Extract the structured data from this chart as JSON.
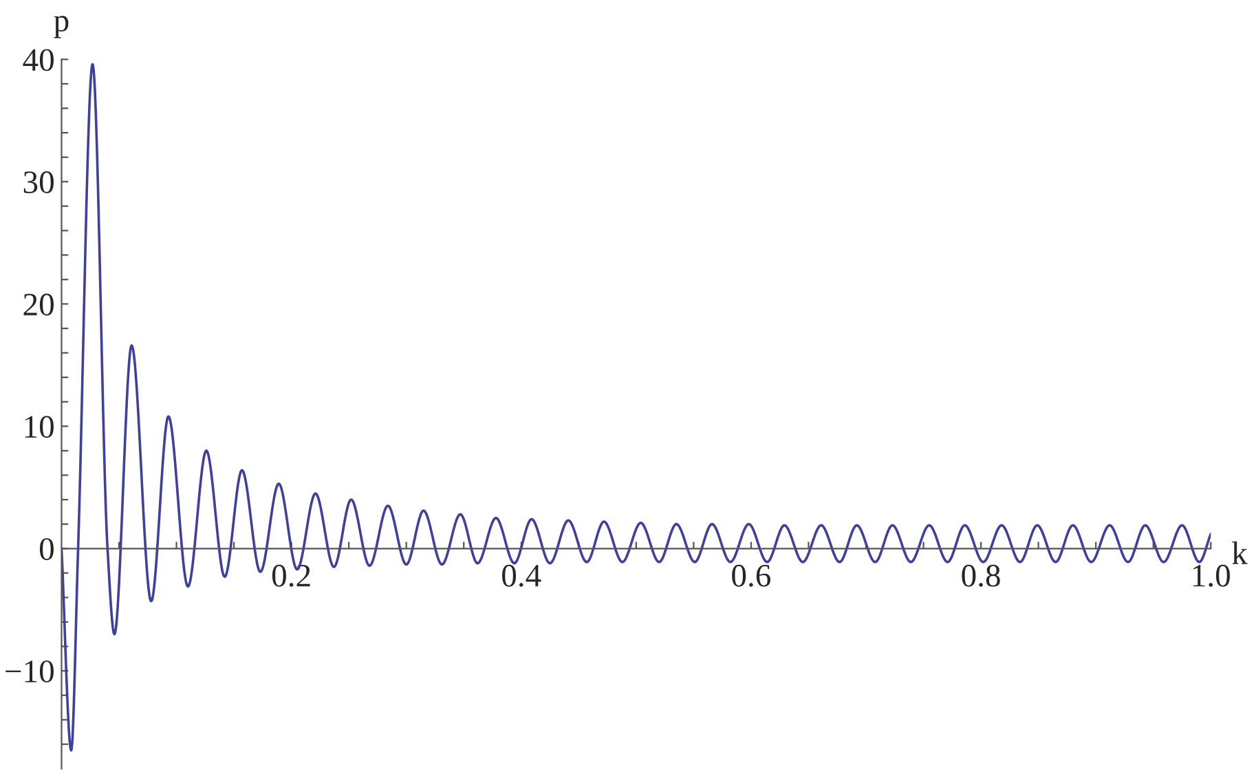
{
  "chart_data": {
    "type": "line",
    "xlabel": "k",
    "ylabel": "p",
    "xlim": [
      0,
      1.0
    ],
    "ylim": [
      -18,
      40
    ],
    "xticks": [
      {
        "value": 0.05,
        "label": null
      },
      {
        "value": 0.1,
        "label": null
      },
      {
        "value": 0.15,
        "label": null
      },
      0.2,
      {
        "value": 0.25,
        "label": null
      },
      {
        "value": 0.3,
        "label": null
      },
      {
        "value": 0.35,
        "label": null
      },
      0.4,
      {
        "value": 0.45,
        "label": null
      },
      {
        "value": 0.5,
        "label": null
      },
      {
        "value": 0.55,
        "label": null
      },
      0.6,
      {
        "value": 0.65,
        "label": null
      },
      {
        "value": 0.7,
        "label": null
      },
      {
        "value": 0.75,
        "label": null
      },
      0.8,
      {
        "value": 0.85,
        "label": null
      },
      {
        "value": 0.9,
        "label": null
      },
      {
        "value": 0.95,
        "label": null
      },
      {
        "value": 1.0,
        "label": "1.0"
      }
    ],
    "yticks": [
      {
        "value": -16,
        "label": null
      },
      {
        "value": -14,
        "label": null
      },
      {
        "value": -12,
        "label": null
      },
      {
        "value": -10,
        "label": "−10"
      },
      {
        "value": -8,
        "label": null
      },
      {
        "value": -6,
        "label": null
      },
      {
        "value": -4,
        "label": null
      },
      {
        "value": -2,
        "label": null
      },
      0,
      {
        "value": 2,
        "label": null
      },
      {
        "value": 4,
        "label": null
      },
      {
        "value": 6,
        "label": null
      },
      {
        "value": 8,
        "label": null
      },
      10,
      {
        "value": 12,
        "label": null
      },
      {
        "value": 14,
        "label": null
      },
      {
        "value": 16,
        "label": null
      },
      {
        "value": 18,
        "label": null
      },
      20,
      {
        "value": 22,
        "label": null
      },
      {
        "value": 24,
        "label": null
      },
      {
        "value": 26,
        "label": null
      },
      {
        "value": 28,
        "label": null
      },
      30,
      {
        "value": 32,
        "label": null
      },
      {
        "value": 34,
        "label": null
      },
      {
        "value": 36,
        "label": null
      },
      {
        "value": 38,
        "label": null
      },
      40
    ],
    "grid": false,
    "series": [
      {
        "color": "#3f3f9f",
        "x": [
          0,
          0.0084,
          0.0144,
          0.027,
          0.04,
          0.046,
          0.061,
          0.078,
          0.093,
          0.11,
          0.126,
          0.142,
          0.157,
          0.173,
          0.189,
          0.205,
          0.221,
          0.237,
          0.252,
          0.268,
          0.284,
          0.3,
          0.315,
          0.331,
          0.347,
          0.362,
          0.378,
          0.394,
          0.409,
          0.425,
          0.441,
          0.457,
          0.472,
          0.488,
          0.504,
          0.52,
          0.535,
          0.551,
          0.566,
          0.582,
          0.598,
          0.614,
          0.629,
          0.645,
          0.661,
          0.677,
          0.692,
          0.708,
          0.723,
          0.739,
          0.755,
          0.771,
          0.786,
          0.802,
          0.818,
          0.834,
          0.849,
          0.865,
          0.88,
          0.896,
          0.912,
          0.928,
          0.943,
          0.959,
          0.975,
          0.99,
          1.0
        ],
        "values": [
          0,
          -16.5,
          0,
          39.6,
          0,
          -7.0,
          16.6,
          -4.3,
          10.8,
          -3.1,
          8.0,
          -2.3,
          6.4,
          -1.9,
          5.3,
          -1.7,
          4.5,
          -1.5,
          4.0,
          -1.4,
          3.5,
          -1.3,
          3.1,
          -1.3,
          2.8,
          -1.2,
          2.5,
          -1.2,
          2.4,
          -1.2,
          2.3,
          -1.1,
          2.2,
          -1.1,
          2.1,
          -1.1,
          2.0,
          -1.1,
          2.0,
          -1.1,
          2.0,
          -1.1,
          1.9,
          -1.1,
          1.9,
          -1.1,
          1.9,
          -1.1,
          1.9,
          -1.1,
          1.9,
          -1.1,
          1.9,
          -1.1,
          1.9,
          -1.1,
          1.9,
          -1.1,
          1.9,
          -1.1,
          1.9,
          -1.1,
          1.9,
          -1.1,
          1.9,
          -1.1,
          1.2
        ]
      }
    ]
  }
}
